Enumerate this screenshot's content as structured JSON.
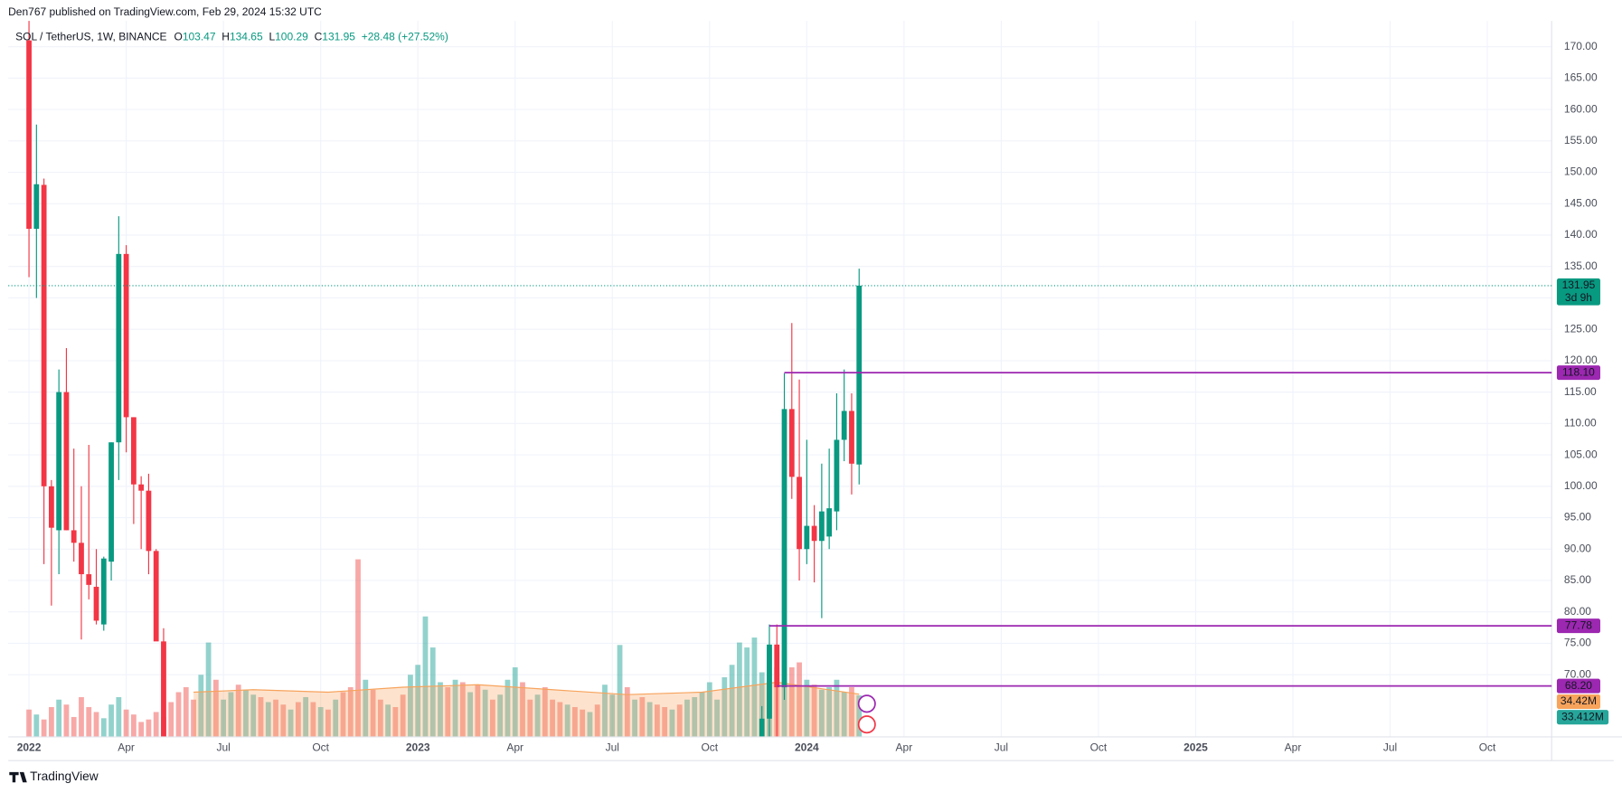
{
  "header": {
    "publisher": "Den767 published on TradingView.com, Feb 29, 2024 15:32 UTC"
  },
  "footer": {
    "brand": "TradingView"
  },
  "chart_data": {
    "type": "candlestick",
    "title": "SOL / TetherUS, 1W, BINANCE",
    "ohlc_legend": {
      "o_label": "O",
      "o": "103.47",
      "h_label": "H",
      "h": "134.65",
      "l_label": "L",
      "l": "100.29",
      "c_label": "C",
      "c": "131.95",
      "change": "+28.48 (+27.52%)"
    },
    "up_color": "#089981",
    "down_color": "#f23645",
    "candles": {
      "x": [
        0,
        1,
        2,
        3,
        4,
        5,
        6,
        7,
        8,
        9,
        10,
        11,
        12,
        13,
        14,
        15,
        16,
        17,
        18,
        98,
        99,
        100,
        101,
        102,
        103,
        104,
        105,
        106,
        107,
        108,
        109,
        110,
        111
      ],
      "open": [
        171,
        141,
        148,
        100,
        93,
        115,
        93,
        91,
        86,
        84,
        78,
        88,
        107,
        137,
        111,
        100.3,
        99.3,
        89.7,
        75.3,
        58,
        63,
        74.8,
        68,
        112.3,
        101.5,
        90,
        93.7,
        91.3,
        92,
        96,
        107.4,
        112,
        103.47
      ],
      "high": [
        176,
        157.6,
        149,
        101,
        118.6,
        122,
        106,
        100,
        106.6,
        90,
        88.8,
        107,
        143,
        138.4,
        111,
        101.6,
        102,
        90,
        77.4,
        65,
        78,
        78,
        118,
        126,
        117,
        107.4,
        97,
        103.6,
        106,
        114.8,
        118.6,
        114.8,
        134.65
      ],
      "low": [
        133.3,
        130,
        87.6,
        81,
        86,
        93,
        88,
        75.6,
        82,
        78,
        77,
        85,
        101,
        105.4,
        94,
        90,
        86,
        76.6,
        48,
        55,
        60,
        60,
        66,
        98,
        85,
        87.6,
        84.7,
        79,
        90,
        93,
        104,
        98.7,
        100.29
      ],
      "close": [
        141,
        148.1,
        100,
        93.4,
        115,
        93,
        91,
        86,
        84.3,
        78.6,
        88.5,
        107,
        137,
        111,
        100.3,
        99.3,
        89.7,
        75.3,
        50,
        63,
        74.8,
        68,
        112.3,
        101.5,
        90,
        93.7,
        91.3,
        96,
        96.5,
        107.4,
        112,
        103.6,
        131.95
      ]
    },
    "volume": {
      "values": [
        22,
        18,
        14,
        24,
        30,
        26,
        16,
        32,
        24,
        20,
        15,
        26,
        32,
        22,
        18,
        12,
        14,
        20,
        16,
        28,
        36,
        40,
        30,
        50,
        76,
        46,
        30,
        36,
        42,
        38,
        34,
        32,
        28,
        30,
        26,
        22,
        28,
        32,
        28,
        24,
        22,
        30,
        36,
        40,
        143,
        46,
        38,
        30,
        26,
        24,
        34,
        50,
        58,
        97,
        72,
        44,
        40,
        46,
        44,
        36,
        42,
        38,
        30,
        34,
        46,
        56,
        44,
        30,
        34,
        40,
        30,
        28,
        26,
        24,
        22,
        20,
        26,
        42,
        34,
        74,
        40,
        30,
        32,
        28,
        26,
        24,
        22,
        26,
        30,
        32,
        36,
        44,
        30,
        48,
        58,
        76,
        72,
        80,
        52,
        72,
        56,
        70,
        56,
        60,
        46,
        42,
        38,
        40,
        46,
        36,
        40,
        33.412
      ],
      "up": [
        false,
        true,
        false,
        false,
        true,
        false,
        false,
        false,
        false,
        false,
        true,
        true,
        true,
        false,
        false,
        false,
        false,
        false,
        false,
        false,
        false,
        false,
        false,
        true,
        true,
        false,
        true,
        true,
        false,
        true,
        true,
        false,
        true,
        false,
        false,
        true,
        false,
        true,
        false,
        true,
        false,
        true,
        false,
        false,
        false,
        true,
        false,
        false,
        true,
        false,
        false,
        true,
        true,
        true,
        true,
        true,
        false,
        true,
        false,
        true,
        false,
        true,
        false,
        true,
        true,
        true,
        false,
        false,
        true,
        false,
        false,
        false,
        true,
        false,
        false,
        true,
        false,
        true,
        true,
        true,
        false,
        true,
        false,
        true,
        false,
        false,
        true,
        false,
        true,
        true,
        true,
        true,
        true,
        true,
        true,
        true,
        true,
        true,
        true,
        true,
        false,
        true,
        false,
        false,
        true,
        false,
        true,
        true,
        true,
        true,
        false,
        true
      ],
      "up_color": "#26a69a",
      "down_color": "#ef5350",
      "last_label": "33.412M"
    },
    "volume_ma": {
      "x": [
        22,
        30,
        40,
        50,
        60,
        70,
        80,
        90,
        95,
        100,
        111
      ],
      "values": [
        36,
        38,
        36,
        40,
        42,
        38,
        34,
        36,
        40,
        44,
        34.42
      ],
      "label": "34.42M",
      "color": "#f7a35c"
    },
    "levels": [
      {
        "value": 118.1,
        "label": "118.10",
        "x_start": 101
      },
      {
        "value": 77.78,
        "label": "77.78",
        "x_start": 99
      },
      {
        "value": 68.2,
        "label": "68.20",
        "x_start": 100
      }
    ],
    "level_color": "#9c27b0",
    "last": {
      "value": 131.95,
      "label": "131.95",
      "countdown": "3d 9h"
    },
    "xlim": [
      -2.77,
      203.6
    ],
    "ylim": [
      60.1,
      174.1
    ],
    "yticks": [
      {
        "value": 170,
        "label": "170.00"
      },
      {
        "value": 165,
        "label": "165.00"
      },
      {
        "value": 160,
        "label": "160.00"
      },
      {
        "value": 155,
        "label": "155.00"
      },
      {
        "value": 150,
        "label": "150.00"
      },
      {
        "value": 145,
        "label": "145.00"
      },
      {
        "value": 140,
        "label": "140.00"
      },
      {
        "value": 135,
        "label": "135.00"
      },
      {
        "value": 130,
        "label": "130.00"
      },
      {
        "value": 125,
        "label": "125.00"
      },
      {
        "value": 120,
        "label": "120.00"
      },
      {
        "value": 115,
        "label": "115.00"
      },
      {
        "value": 110,
        "label": "110.00"
      },
      {
        "value": 105,
        "label": "105.00"
      },
      {
        "value": 100,
        "label": "100.00"
      },
      {
        "value": 95,
        "label": "95.00"
      },
      {
        "value": 90,
        "label": "90.00"
      },
      {
        "value": 85,
        "label": "85.00"
      },
      {
        "value": 80,
        "label": "80.00"
      },
      {
        "value": 75,
        "label": "75.00"
      },
      {
        "value": 70,
        "label": "70.00"
      }
    ],
    "xticks": [
      {
        "value": 0,
        "label": "2022"
      },
      {
        "value": 13,
        "label": "Apr"
      },
      {
        "value": 26,
        "label": "Jul"
      },
      {
        "value": 39,
        "label": "Oct"
      },
      {
        "value": 52,
        "label": "2023"
      },
      {
        "value": 65,
        "label": "Apr"
      },
      {
        "value": 78,
        "label": "Jul"
      },
      {
        "value": 91,
        "label": "Oct"
      },
      {
        "value": 104,
        "label": "2024"
      },
      {
        "value": 117,
        "label": "Apr"
      },
      {
        "value": 130,
        "label": "Jul"
      },
      {
        "value": 143,
        "label": "Oct"
      },
      {
        "value": 156,
        "label": "2025"
      },
      {
        "value": 169,
        "label": "Apr"
      },
      {
        "value": 182,
        "label": "Jul"
      },
      {
        "value": 195,
        "label": "Oct"
      }
    ],
    "grid": true
  }
}
